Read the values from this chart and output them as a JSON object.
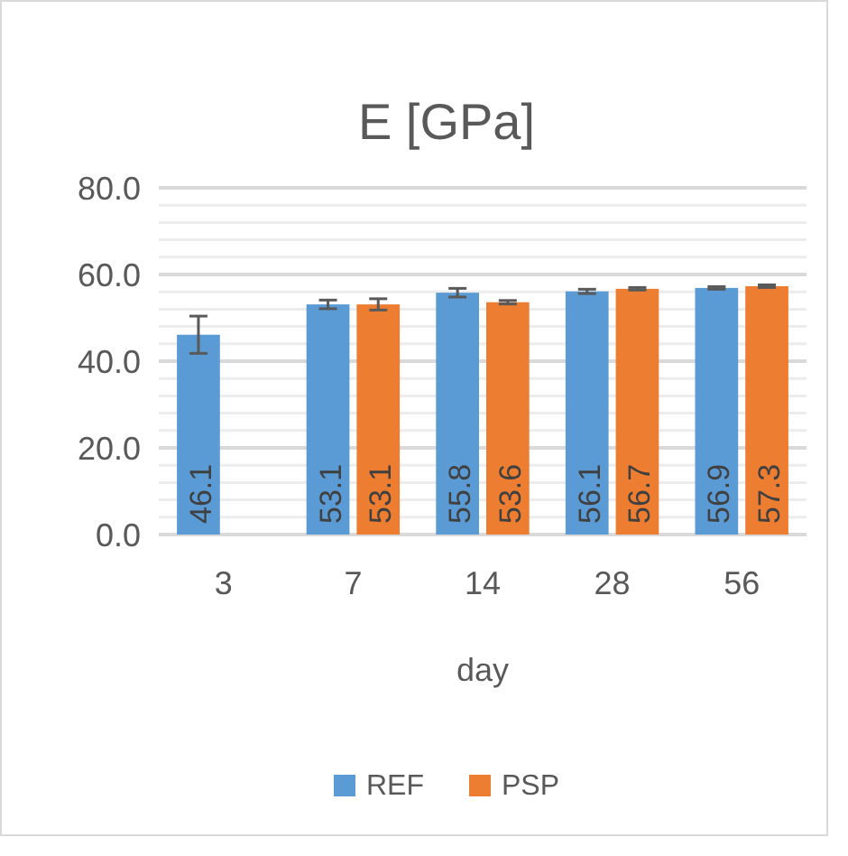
{
  "chart_data": {
    "type": "bar",
    "title": "E [GPa]",
    "xlabel": "day",
    "categories": [
      "3",
      "7",
      "14",
      "28",
      "56"
    ],
    "series": [
      {
        "name": "REF",
        "color": "#5b9bd5",
        "values": [
          46.1,
          53.1,
          55.8,
          56.1,
          56.9
        ],
        "errors": [
          4.3,
          1,
          1,
          0.5,
          0.3
        ]
      },
      {
        "name": "PSP",
        "color": "#ed7d31",
        "values": [
          null,
          53.1,
          53.6,
          56.7,
          57.3
        ],
        "errors": [
          null,
          1.3,
          0.4,
          0.3,
          0.3
        ]
      }
    ],
    "ylim": [
      0,
      80
    ],
    "yticks": [
      {
        "value": 0,
        "label": "0.0"
      },
      {
        "value": 4,
        "label": null
      },
      {
        "value": 8,
        "label": null
      },
      {
        "value": 12,
        "label": null
      },
      {
        "value": 16,
        "label": null
      },
      {
        "value": 20,
        "label": "20.0"
      },
      {
        "value": 24,
        "label": null
      },
      {
        "value": 28,
        "label": null
      },
      {
        "value": 32,
        "label": null
      },
      {
        "value": 36,
        "label": null
      },
      {
        "value": 40,
        "label": "40.0"
      },
      {
        "value": 44,
        "label": null
      },
      {
        "value": 48,
        "label": null
      },
      {
        "value": 52,
        "label": null
      },
      {
        "value": 56,
        "label": null
      },
      {
        "value": 60,
        "label": "60.0"
      },
      {
        "value": 64,
        "label": null
      },
      {
        "value": 68,
        "label": null
      },
      {
        "value": 72,
        "label": null
      },
      {
        "value": 76,
        "label": null
      },
      {
        "value": 80,
        "label": "80.0"
      }
    ],
    "grid": "y",
    "legend": "bottom",
    "data_labels": true
  }
}
